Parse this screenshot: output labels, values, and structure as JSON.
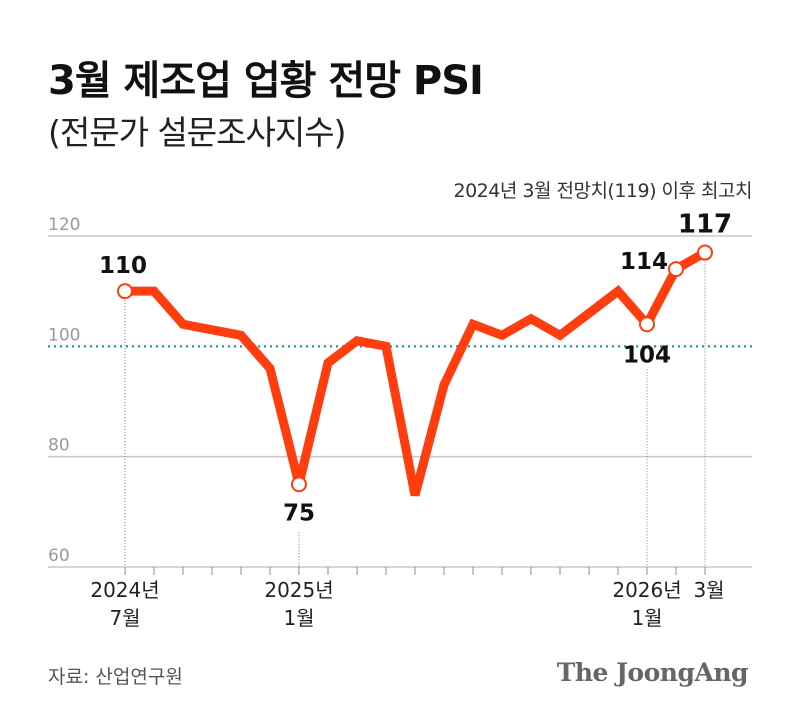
{
  "title": "3월 제조업 업황 전망 PSI",
  "subtitle": "(전문가 설문조사지수)",
  "note": "2024년 3월 전망치(119) 이후 최고치",
  "source": "자료: 산업연구원",
  "logo": "The JoongAng",
  "chart_data": {
    "type": "line",
    "x": [
      "2024-07",
      "2024-08",
      "2024-09",
      "2024-10",
      "2024-11",
      "2024-12",
      "2025-01",
      "2025-02",
      "2025-03",
      "2025-04",
      "2025-05",
      "2025-06",
      "2025-07",
      "2025-08",
      "2025-09",
      "2025-10",
      "2025-11",
      "2025-12",
      "2026-01",
      "2026-02",
      "2026-03"
    ],
    "values": [
      110,
      110,
      104,
      103,
      102,
      96,
      75,
      97,
      101,
      100,
      73,
      93,
      104,
      102,
      105,
      102,
      106,
      110,
      104,
      114,
      117
    ],
    "ylim": [
      60,
      120
    ],
    "yticks": [
      60,
      80,
      100,
      120
    ],
    "reference_line": 100,
    "x_tick_labels": [
      {
        "index": 0,
        "line1": "2024년",
        "line2": "7월"
      },
      {
        "index": 6,
        "line1": "2025년",
        "line2": "1월"
      },
      {
        "index": 18,
        "line1": "2026년",
        "line2": "1월"
      },
      {
        "index": 20,
        "line1": "3월",
        "line2": ""
      }
    ],
    "data_labels": [
      {
        "index": 0,
        "text": "110"
      },
      {
        "index": 6,
        "text": "75"
      },
      {
        "index": 18,
        "text": "104"
      },
      {
        "index": 19,
        "text": "114"
      },
      {
        "index": 20,
        "text": "117"
      }
    ],
    "line_color": "#ff3d0f",
    "reference_color": "#1aa6c4",
    "grid": true
  }
}
